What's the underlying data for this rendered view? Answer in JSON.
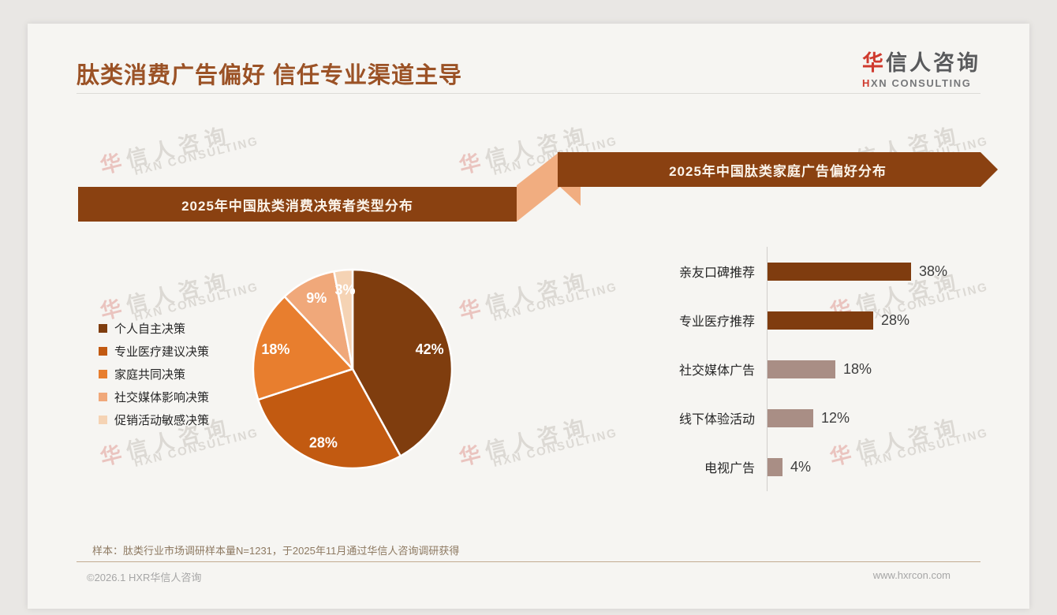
{
  "page": {
    "title": "肽类消费广告偏好 信任专业渠道主导",
    "logo": {
      "cn_first": "华",
      "cn_rest": "信人咨询",
      "en_first": "H",
      "en_rest": "XN CONSULTING"
    },
    "watermark": {
      "line1_first": "华",
      "line1_rest": "信人咨询",
      "line2": "HXN CONSULTING"
    },
    "footnote": "样本：肽类行业市场调研样本量N=1231，于2025年11月通过华信人咨询调研获得",
    "copyright": "©2026.1 HXR华信人咨询",
    "website": "www.hxrcon.com"
  },
  "colors": {
    "title_brown": "#9b5226",
    "banner_brown": "#8a4111",
    "connector_peach": "#f1ad80",
    "bar_dark": "#7f3c0f",
    "bar_mauve": "#a98e85",
    "logo_red": "#cf3a2e"
  },
  "chart_data": [
    {
      "type": "pie",
      "title": "2025年中国肽类消费决策者类型分布",
      "labels": [
        "个人自主决策",
        "专业医疗建议决策",
        "家庭共同决策",
        "社交媒体影响决策",
        "促销活动敏感决策"
      ],
      "values": [
        42,
        28,
        18,
        9,
        3
      ],
      "unit": "%",
      "colors": [
        "#7f3d0e",
        "#c25a11",
        "#e87e2e",
        "#f0a87a",
        "#f5d3b4"
      ],
      "start_angle_deg": 0,
      "direction": "clockwise",
      "legend_position": "left",
      "slice_border_color": "#ffffff"
    },
    {
      "type": "bar",
      "title": "2025年中国肽类家庭广告偏好分布",
      "orientation": "horizontal",
      "categories": [
        "亲友口碑推荐",
        "专业医疗推荐",
        "社交媒体广告",
        "线下体验活动",
        "电视广告"
      ],
      "values": [
        38,
        28,
        18,
        12,
        4
      ],
      "unit": "%",
      "bar_colors": [
        "#7f3c0f",
        "#7f3c0f",
        "#a98e85",
        "#a98e85",
        "#a98e85"
      ],
      "xlim": [
        0,
        40
      ],
      "value_labels": true
    }
  ]
}
